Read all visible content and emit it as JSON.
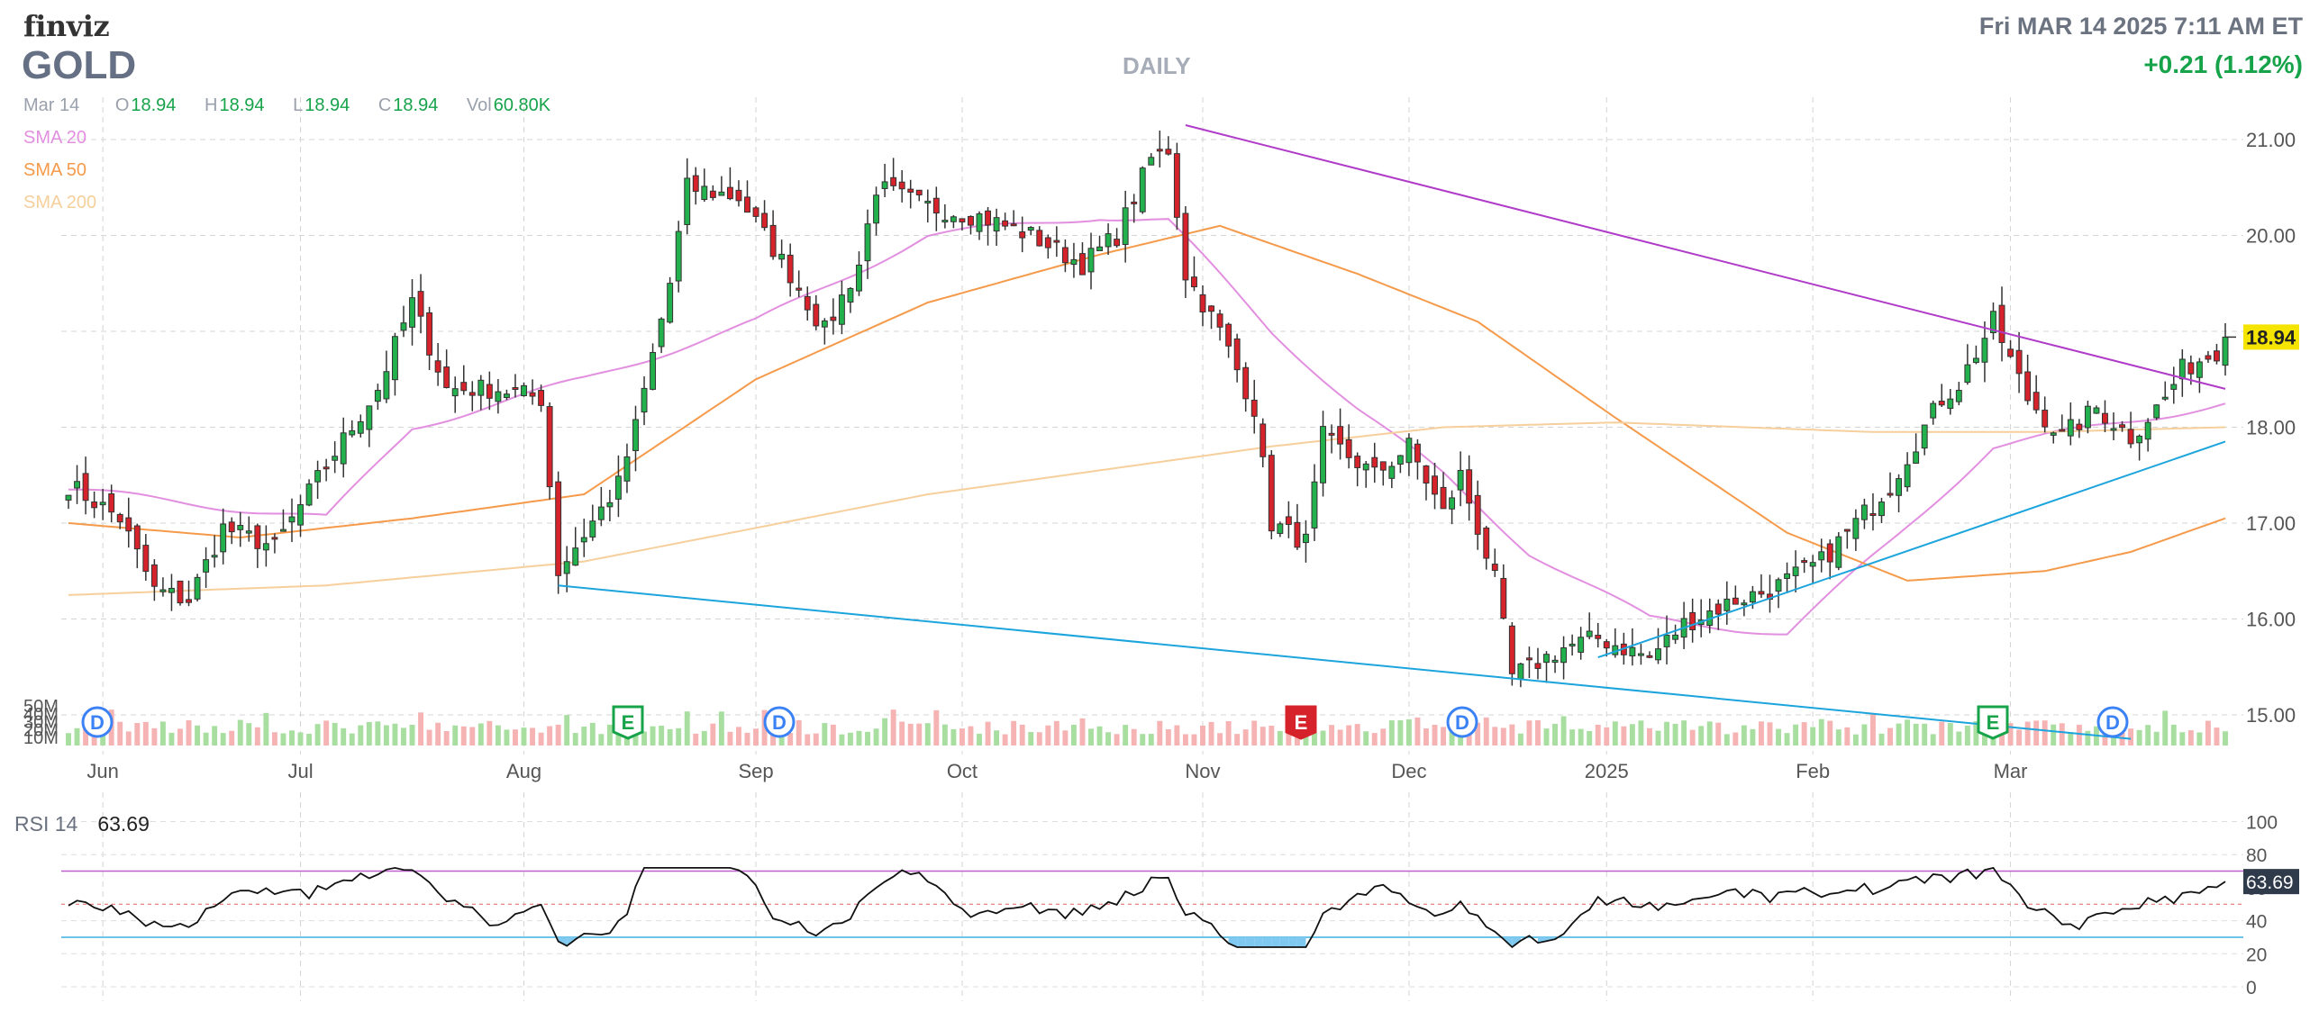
{
  "header": {
    "logo": "finviz",
    "ticker": "GOLD",
    "period": "DAILY",
    "datetime": "Fri MAR 14 2025 7:11 AM ET",
    "change": "+0.21 (1.12%)"
  },
  "ohlc_bar": {
    "date": "Mar 14",
    "o_label": "O",
    "o": "18.94",
    "h_label": "H",
    "h": "18.94",
    "l_label": "L",
    "l": "18.94",
    "c_label": "C",
    "c": "18.94",
    "vol_label": "Vol",
    "vol": "60.80K"
  },
  "indicators": {
    "sma20": {
      "label": "SMA 20",
      "color": "#e28fe0"
    },
    "sma50": {
      "label": "SMA 50",
      "color": "#f59a4a"
    },
    "sma200": {
      "label": "SMA 200",
      "color": "#f6cf9c"
    }
  },
  "colors": {
    "up": "#22b14c",
    "down": "#d6222a",
    "vol_up": "#a8dfa0",
    "vol_down": "#f6b3b3",
    "upper_trend": "#b03bc9",
    "lower_trend": "#1ca4dc",
    "change": "#16a34a",
    "last_price_bg": "#f5e400"
  },
  "rsi": {
    "label": "RSI 14",
    "value": "63.69",
    "ticks": [
      "100",
      "80",
      "60",
      "40",
      "20",
      "0"
    ],
    "overbought": 70,
    "oversold": 30
  },
  "chart_data": {
    "type": "candlestick",
    "y_ticks": [
      "21.00",
      "20.00",
      "18.00",
      "17.00",
      "16.00",
      "15.00"
    ],
    "last_price_label": "18.94",
    "volume_ticks": [
      "50M",
      "40M",
      "30M",
      "20M",
      "10M"
    ],
    "x_labels": [
      "Jun",
      "Jul",
      "Aug",
      "Sep",
      "Oct",
      "Nov",
      "Dec",
      "2025",
      "Feb",
      "Mar"
    ],
    "ylim": [
      14.9,
      21.3
    ],
    "events": [
      {
        "letter": "D",
        "kind": "dividend",
        "month": "Jun"
      },
      {
        "letter": "E",
        "kind": "earnings",
        "month": "Aug"
      },
      {
        "letter": "D",
        "kind": "dividend",
        "month": "Sep"
      },
      {
        "letter": "E",
        "kind": "earnings",
        "month": "Nov"
      },
      {
        "letter": "D",
        "kind": "dividend",
        "month": "Nov"
      },
      {
        "letter": "E",
        "kind": "earnings",
        "month": "Feb"
      },
      {
        "letter": "D",
        "kind": "dividend",
        "month": "Mar"
      }
    ],
    "close_anchors": [
      [
        0,
        17.4
      ],
      [
        6,
        17.05
      ],
      [
        10,
        16.3
      ],
      [
        14,
        16.2
      ],
      [
        18,
        16.95
      ],
      [
        24,
        16.75
      ],
      [
        30,
        17.6
      ],
      [
        36,
        18.4
      ],
      [
        40,
        19.3
      ],
      [
        44,
        18.4
      ],
      [
        50,
        18.4
      ],
      [
        55,
        18.3
      ],
      [
        57,
        16.5
      ],
      [
        64,
        17.4
      ],
      [
        66,
        18.0
      ],
      [
        70,
        19.5
      ],
      [
        72,
        20.5
      ],
      [
        78,
        20.4
      ],
      [
        84,
        19.6
      ],
      [
        88,
        19.0
      ],
      [
        92,
        19.7
      ],
      [
        94,
        20.5
      ],
      [
        100,
        20.3
      ],
      [
        106,
        20.2
      ],
      [
        112,
        20.0
      ],
      [
        118,
        19.7
      ],
      [
        122,
        20.0
      ],
      [
        126,
        20.8
      ],
      [
        128,
        20.9
      ],
      [
        130,
        19.6
      ],
      [
        134,
        19.0
      ],
      [
        136,
        18.6
      ],
      [
        138,
        18.2
      ],
      [
        140,
        17.0
      ],
      [
        144,
        16.8
      ],
      [
        146,
        17.9
      ],
      [
        152,
        17.5
      ],
      [
        156,
        17.8
      ],
      [
        160,
        17.1
      ],
      [
        162,
        17.5
      ],
      [
        166,
        16.4
      ],
      [
        168,
        15.4
      ],
      [
        174,
        15.7
      ],
      [
        178,
        15.8
      ],
      [
        184,
        15.6
      ],
      [
        188,
        15.95
      ],
      [
        194,
        16.2
      ],
      [
        198,
        16.3
      ],
      [
        204,
        16.6
      ],
      [
        212,
        17.4
      ],
      [
        218,
        18.3
      ],
      [
        220,
        18.45
      ],
      [
        224,
        19.1
      ],
      [
        228,
        18.3
      ],
      [
        232,
        17.9
      ],
      [
        236,
        18.2
      ],
      [
        240,
        17.9
      ],
      [
        244,
        18.3
      ],
      [
        246,
        18.6
      ],
      [
        250,
        18.8
      ],
      [
        251,
        18.94
      ]
    ],
    "sma_anchors": {
      "sma20": [
        [
          0,
          17.35
        ],
        [
          30,
          17.05
        ],
        [
          40,
          18.0
        ],
        [
          60,
          18.5
        ],
        [
          80,
          19.1
        ],
        [
          100,
          20.0
        ],
        [
          120,
          20.2
        ],
        [
          128,
          20.15
        ],
        [
          140,
          19.0
        ],
        [
          150,
          18.2
        ],
        [
          160,
          17.5
        ],
        [
          170,
          16.7
        ],
        [
          184,
          16.0
        ],
        [
          200,
          15.85
        ],
        [
          212,
          16.8
        ],
        [
          224,
          17.8
        ],
        [
          251,
          18.25
        ]
      ],
      "sma50": [
        [
          0,
          17.0
        ],
        [
          20,
          16.85
        ],
        [
          40,
          17.05
        ],
        [
          60,
          17.3
        ],
        [
          80,
          18.5
        ],
        [
          100,
          19.3
        ],
        [
          120,
          19.8
        ],
        [
          134,
          20.1
        ],
        [
          150,
          19.6
        ],
        [
          164,
          19.1
        ],
        [
          180,
          18.1
        ],
        [
          200,
          16.9
        ],
        [
          214,
          16.4
        ],
        [
          230,
          16.5
        ],
        [
          240,
          16.7
        ],
        [
          251,
          17.05
        ]
      ],
      "sma200": [
        [
          0,
          16.25
        ],
        [
          30,
          16.35
        ],
        [
          60,
          16.6
        ],
        [
          100,
          17.3
        ],
        [
          140,
          17.8
        ],
        [
          160,
          18.0
        ],
        [
          180,
          18.05
        ],
        [
          210,
          17.95
        ],
        [
          230,
          17.95
        ],
        [
          251,
          18.0
        ]
      ]
    },
    "trendlines": [
      {
        "name": "upper",
        "from": [
          130,
          21.15
        ],
        "to": [
          251,
          18.4
        ]
      },
      {
        "name": "lower_left",
        "from": [
          57,
          16.35
        ],
        "to": [
          240,
          14.75
        ]
      },
      {
        "name": "lower_right",
        "from": [
          178,
          15.6
        ],
        "to": [
          251,
          17.85
        ]
      }
    ],
    "rsi_series": "derived"
  }
}
